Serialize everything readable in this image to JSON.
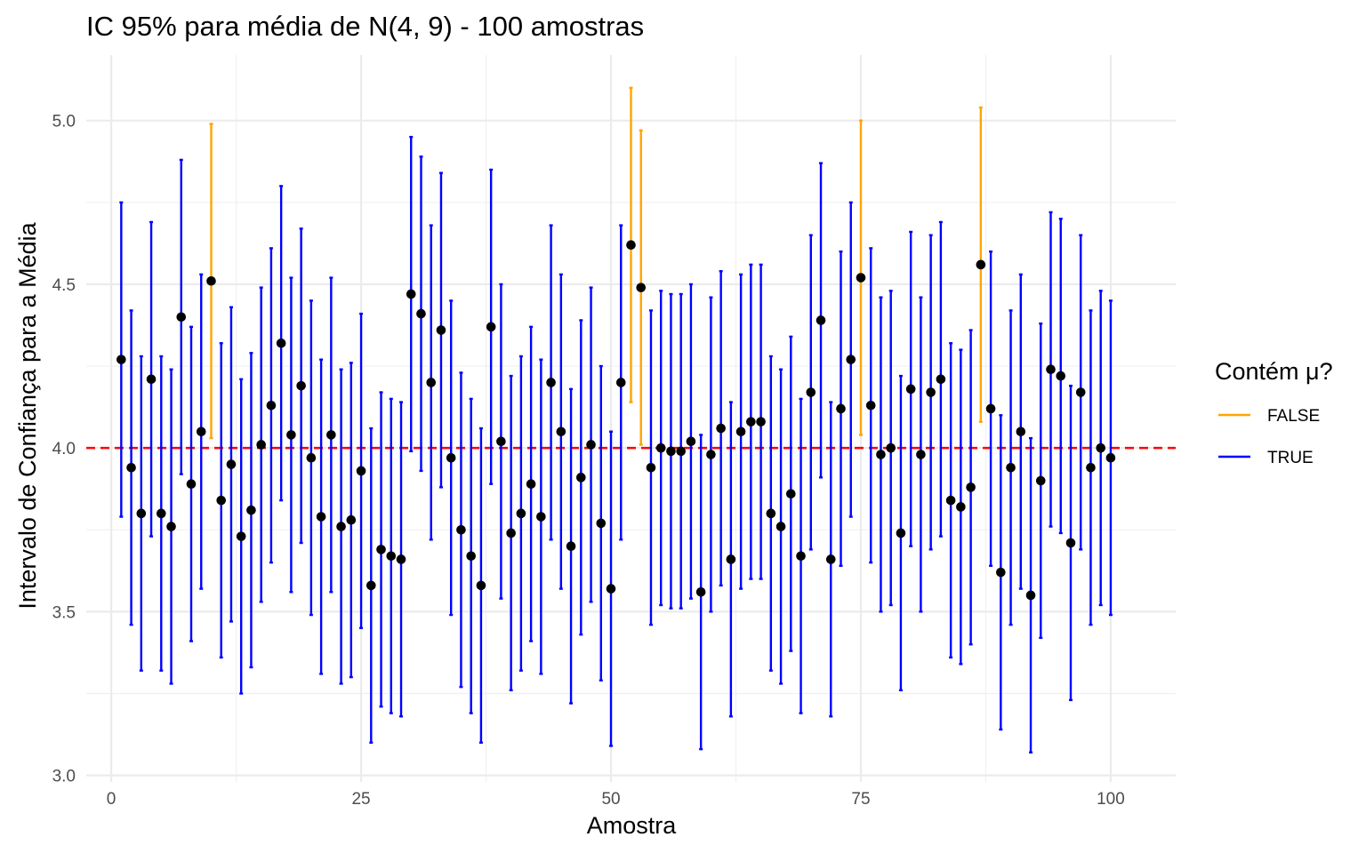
{
  "chart_data": {
    "type": "errorbar",
    "title": "IC 95% para média de N(4, 9) - 100 amostras",
    "xlabel": "Amostra",
    "ylabel": "Intervalo de Confiança para a Média",
    "xlim": [
      -2.5,
      106.5
    ],
    "ylim": [
      2.98,
      5.2
    ],
    "xticks": [
      0,
      25,
      50,
      75,
      100
    ],
    "yticks": [
      3.0,
      3.5,
      4.0,
      4.5,
      5.0
    ],
    "xtick_labels": [
      "0",
      "25",
      "50",
      "75",
      "100"
    ],
    "ytick_labels": [
      "3.0",
      "3.5",
      "4.0",
      "4.5",
      "5.0"
    ],
    "grid": true,
    "reference_line": {
      "y": 4.0,
      "color": "#ff0000",
      "style": "dashed"
    },
    "legend": {
      "title": "Contém μ?",
      "position": "right",
      "entries": [
        {
          "label": "FALSE",
          "color": "#ffa500"
        },
        {
          "label": "TRUE",
          "color": "#0000ff"
        }
      ]
    },
    "point_color": "#000000",
    "x": [
      1,
      2,
      3,
      4,
      5,
      6,
      7,
      8,
      9,
      10,
      11,
      12,
      13,
      14,
      15,
      16,
      17,
      18,
      19,
      20,
      21,
      22,
      23,
      24,
      25,
      26,
      27,
      28,
      29,
      30,
      31,
      32,
      33,
      34,
      35,
      36,
      37,
      38,
      39,
      40,
      41,
      42,
      43,
      44,
      45,
      46,
      47,
      48,
      49,
      50,
      51,
      52,
      53,
      54,
      55,
      56,
      57,
      58,
      59,
      60,
      61,
      62,
      63,
      64,
      65,
      66,
      67,
      68,
      69,
      70,
      71,
      72,
      73,
      74,
      75,
      76,
      77,
      78,
      79,
      80,
      81,
      82,
      83,
      84,
      85,
      86,
      87,
      88,
      89,
      90,
      91,
      92,
      93,
      94,
      95,
      96,
      97,
      98,
      99,
      100
    ],
    "mean": [
      4.27,
      3.94,
      3.8,
      4.21,
      3.8,
      3.76,
      4.4,
      3.89,
      4.05,
      4.51,
      3.84,
      3.95,
      3.73,
      3.81,
      4.01,
      4.13,
      4.32,
      4.04,
      4.19,
      3.97,
      3.79,
      4.04,
      3.76,
      3.78,
      3.93,
      3.58,
      3.69,
      3.67,
      3.66,
      4.47,
      4.41,
      4.2,
      4.36,
      3.97,
      3.75,
      3.67,
      3.58,
      4.37,
      4.02,
      3.74,
      3.8,
      3.89,
      3.79,
      4.2,
      4.05,
      3.7,
      3.91,
      4.01,
      3.77,
      3.57,
      4.2,
      4.62,
      4.49,
      3.94,
      4.0,
      3.99,
      3.99,
      4.02,
      3.56,
      3.98,
      4.06,
      3.66,
      4.05,
      4.08,
      4.08,
      3.8,
      3.76,
      3.86,
      3.67,
      4.17,
      4.39,
      3.66,
      4.12,
      4.27,
      4.52,
      4.13,
      3.98,
      4.0,
      3.74,
      4.18,
      3.98,
      4.17,
      4.21,
      3.84,
      3.82,
      3.88,
      4.56,
      4.12,
      3.62,
      3.94,
      4.05,
      3.55,
      3.9,
      4.24,
      4.22,
      3.71,
      4.17,
      3.94,
      4.0,
      3.97
    ],
    "lower": [
      3.79,
      3.46,
      3.32,
      3.73,
      3.32,
      3.28,
      3.92,
      3.41,
      3.57,
      4.03,
      3.36,
      3.47,
      3.25,
      3.33,
      3.53,
      3.65,
      3.84,
      3.56,
      3.71,
      3.49,
      3.31,
      3.56,
      3.28,
      3.3,
      3.45,
      3.1,
      3.21,
      3.19,
      3.18,
      3.99,
      3.93,
      3.72,
      3.88,
      3.49,
      3.27,
      3.19,
      3.1,
      3.89,
      3.54,
      3.26,
      3.32,
      3.41,
      3.31,
      3.72,
      3.57,
      3.22,
      3.43,
      3.53,
      3.29,
      3.09,
      3.72,
      4.14,
      4.01,
      3.46,
      3.52,
      3.51,
      3.51,
      3.54,
      3.08,
      3.5,
      3.58,
      3.18,
      3.57,
      3.6,
      3.6,
      3.32,
      3.28,
      3.38,
      3.19,
      3.69,
      3.91,
      3.18,
      3.64,
      3.79,
      4.04,
      3.65,
      3.5,
      3.52,
      3.26,
      3.7,
      3.5,
      3.69,
      3.73,
      3.36,
      3.34,
      3.4,
      4.08,
      3.64,
      3.14,
      3.46,
      3.57,
      3.07,
      3.42,
      3.76,
      3.74,
      3.23,
      3.69,
      3.46,
      3.52,
      3.49
    ],
    "upper": [
      4.75,
      4.42,
      4.28,
      4.69,
      4.28,
      4.24,
      4.88,
      4.37,
      4.53,
      4.99,
      4.32,
      4.43,
      4.21,
      4.29,
      4.49,
      4.61,
      4.8,
      4.52,
      4.67,
      4.45,
      4.27,
      4.52,
      4.24,
      4.26,
      4.41,
      4.06,
      4.17,
      4.15,
      4.14,
      4.95,
      4.89,
      4.68,
      4.84,
      4.45,
      4.23,
      4.15,
      4.06,
      4.85,
      4.5,
      4.22,
      4.28,
      4.37,
      4.27,
      4.68,
      4.53,
      4.18,
      4.39,
      4.49,
      4.25,
      4.05,
      4.68,
      5.1,
      4.97,
      4.42,
      4.48,
      4.47,
      4.47,
      4.5,
      4.04,
      4.46,
      4.54,
      4.14,
      4.53,
      4.56,
      4.56,
      4.28,
      4.24,
      4.34,
      4.15,
      4.65,
      4.87,
      4.14,
      4.6,
      4.75,
      5.0,
      4.61,
      4.46,
      4.48,
      4.22,
      4.66,
      4.46,
      4.65,
      4.69,
      4.32,
      4.3,
      4.36,
      5.04,
      4.6,
      4.1,
      4.42,
      4.53,
      4.03,
      4.38,
      4.72,
      4.7,
      4.19,
      4.65,
      4.42,
      4.48,
      4.45
    ],
    "contains_mu": [
      true,
      true,
      true,
      true,
      true,
      true,
      true,
      true,
      true,
      false,
      true,
      true,
      true,
      true,
      true,
      true,
      true,
      true,
      true,
      true,
      true,
      true,
      true,
      true,
      true,
      true,
      true,
      true,
      true,
      true,
      true,
      true,
      true,
      true,
      true,
      true,
      true,
      true,
      true,
      true,
      true,
      true,
      true,
      true,
      true,
      true,
      true,
      true,
      true,
      true,
      true,
      false,
      false,
      true,
      true,
      true,
      true,
      true,
      true,
      true,
      true,
      true,
      true,
      true,
      true,
      true,
      true,
      true,
      true,
      true,
      true,
      true,
      true,
      true,
      false,
      true,
      true,
      true,
      true,
      true,
      true,
      true,
      true,
      true,
      true,
      true,
      false,
      true,
      true,
      true,
      true,
      true,
      true,
      true,
      true,
      true,
      true,
      true,
      true,
      true
    ]
  }
}
